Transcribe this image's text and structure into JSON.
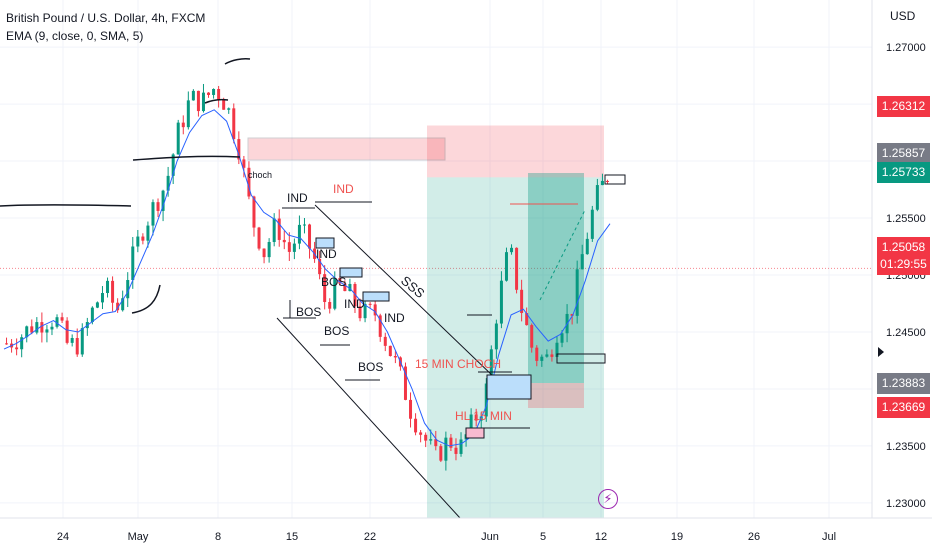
{
  "legend": {
    "symbol": "British Pound / U.S. Dollar, 4h, FXCM",
    "indicator": "EMA (9, close, 0, SMA, 5)"
  },
  "currency": "USD",
  "chart_data": {
    "type": "candlestick",
    "y_ticks": [
      "1.27000",
      "1.26500",
      "1.26000",
      "1.25500",
      "1.25000",
      "1.24500",
      "1.24000",
      "1.23500",
      "1.23000"
    ],
    "ylim": [
      1.2285,
      1.2715
    ],
    "x_ticks": [
      "24",
      "May",
      "8",
      "15",
      "22",
      "Jun",
      "5",
      "12",
      "19",
      "26",
      "Jul"
    ],
    "price_tags": [
      {
        "value": "1.26312",
        "color": "#f23645"
      },
      {
        "value": "1.25857",
        "color": "#787b86"
      },
      {
        "value": "1.25733",
        "color": "#089981"
      },
      {
        "value": "1.25058",
        "sub": "01:29:55",
        "color": "#f23645"
      },
      {
        "value": "1.23883",
        "color": "#787b86"
      },
      {
        "value": "1.23669",
        "color": "#f23645"
      }
    ],
    "path_points": [
      [
        1.244,
        1.2442
      ],
      [
        1.2445,
        1.2452
      ],
      [
        1.2455,
        1.245
      ],
      [
        1.246,
        1.2478
      ],
      [
        1.2462,
        1.247
      ],
      [
        1.2438,
        1.242
      ],
      [
        1.244,
        1.2466
      ],
      [
        1.2468,
        1.247
      ],
      [
        1.249,
        1.2475
      ],
      [
        1.2468,
        1.247
      ],
      [
        1.2505,
        1.2535
      ],
      [
        1.2538,
        1.2562
      ],
      [
        1.256,
        1.2572
      ],
      [
        1.258,
        1.261
      ],
      [
        1.2625,
        1.265
      ],
      [
        1.2655,
        1.2645
      ],
      [
        1.2652,
        1.2672
      ],
      [
        1.2665,
        1.2652
      ],
      [
        1.2648,
        1.2625
      ],
      [
        1.261,
        1.2555
      ],
      [
        1.255,
        1.2505
      ],
      [
        1.252,
        1.2548
      ],
      [
        1.2545,
        1.2535
      ],
      [
        1.252,
        1.2525
      ],
      [
        1.254,
        1.2535
      ],
      [
        1.2518,
        1.2495
      ],
      [
        1.2475,
        1.2485
      ],
      [
        1.249,
        1.2472
      ],
      [
        1.2482,
        1.2478
      ],
      [
        1.2465,
        1.2455
      ],
      [
        1.2468,
        1.2462
      ],
      [
        1.244,
        1.2412
      ],
      [
        1.2415,
        1.2395
      ],
      [
        1.238,
        1.2372
      ],
      [
        1.2358,
        1.2325
      ],
      [
        1.234,
        1.235
      ],
      [
        1.2355,
        1.234
      ],
      [
        1.2348,
        1.2362
      ],
      [
        1.237,
        1.2378
      ],
      [
        1.239,
        1.244
      ],
      [
        1.247,
        1.252
      ],
      [
        1.2525,
        1.251
      ],
      [
        1.247,
        1.244
      ],
      [
        1.243,
        1.2418
      ],
      [
        1.2425,
        1.244
      ],
      [
        1.2455,
        1.2475
      ],
      [
        1.2465,
        1.2495
      ],
      [
        1.252,
        1.2548
      ],
      [
        1.2565,
        1.2585
      ],
      [
        1.2588,
        1.251
      ]
    ],
    "ema_points": [
      1.2435,
      1.244,
      1.2447,
      1.2455,
      1.246,
      1.2452,
      1.245,
      1.2458,
      1.2466,
      1.2468,
      1.2485,
      1.251,
      1.2535,
      1.2565,
      1.26,
      1.2625,
      1.264,
      1.2645,
      1.2635,
      1.2605,
      1.257,
      1.2555,
      1.2548,
      1.2535,
      1.2532,
      1.252,
      1.2505,
      1.2495,
      1.2488,
      1.2475,
      1.2468,
      1.245,
      1.2425,
      1.24,
      1.237,
      1.2355,
      1.235,
      1.2352,
      1.236,
      1.2385,
      1.243,
      1.2465,
      1.247,
      1.2455,
      1.2442,
      1.2448,
      1.2465,
      1.2495,
      1.253,
      1.2545
    ],
    "annotations": [
      {
        "text": "IND",
        "color": "#131722"
      },
      {
        "text": "IND",
        "color": "#ef5350"
      },
      {
        "text": "IND",
        "color": "#131722"
      },
      {
        "text": "IND",
        "color": "#131722"
      },
      {
        "text": "IND",
        "color": "#131722"
      },
      {
        "text": "BOS",
        "color": "#131722"
      },
      {
        "text": "BOS",
        "color": "#131722"
      },
      {
        "text": "BOS",
        "color": "#131722"
      },
      {
        "text": "BOS",
        "color": "#131722"
      },
      {
        "text": "choch",
        "color": "#131722"
      },
      {
        "text": "SSS",
        "color": "#131722"
      },
      {
        "text": "15 MIN CHOCH",
        "color": "#ef5350"
      },
      {
        "text": "HL 15 MIN",
        "color": "#ef5350"
      }
    ]
  }
}
